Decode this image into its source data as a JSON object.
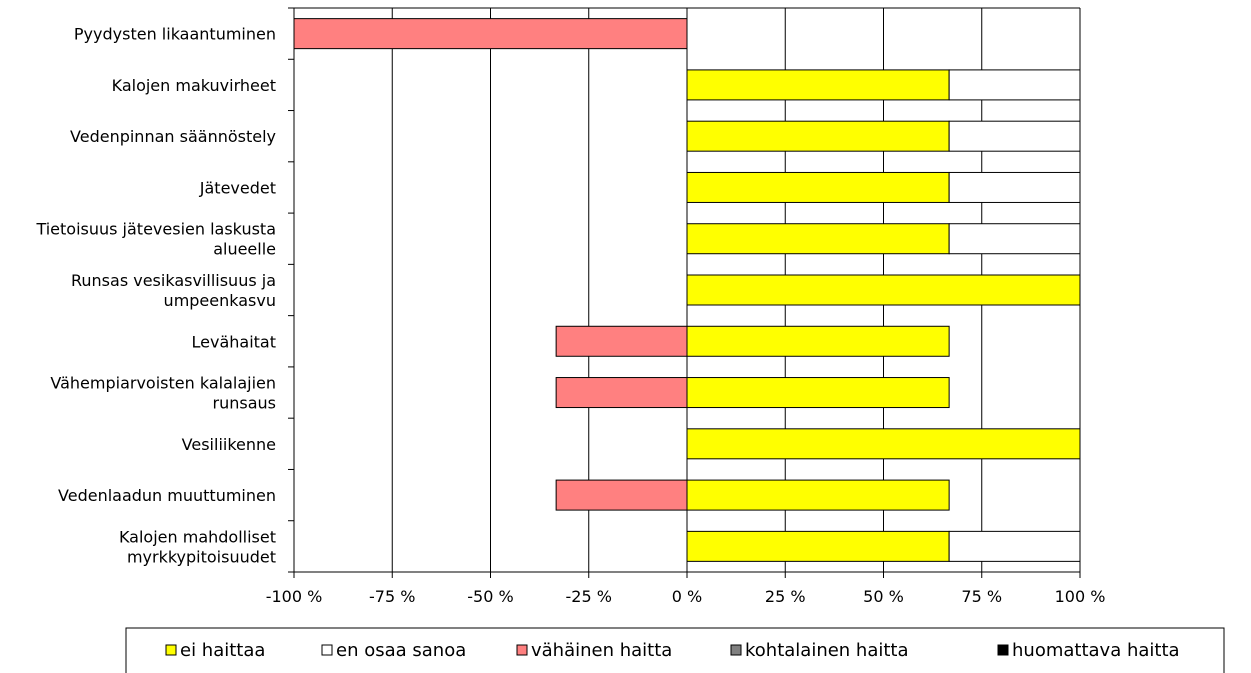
{
  "chart_data": {
    "type": "bar",
    "orientation": "horizontal",
    "stacked": true,
    "categories": [
      [
        "Pyydysten likaantuminen"
      ],
      [
        "Kalojen makuvirheet"
      ],
      [
        "Vedenpinnan säännöstely"
      ],
      [
        "Jätevedet"
      ],
      [
        "Tietoisuus jätevesien laskusta",
        "alueelle"
      ],
      [
        "Runsas vesikasvillisuus ja",
        "umpeenkasvu"
      ],
      [
        "Levähaitat"
      ],
      [
        "Vähempiarvoisten kalalajien",
        "runsaus"
      ],
      [
        "Vesiliikenne"
      ],
      [
        "Vedenlaadun muuttuminen"
      ],
      [
        "Kalojen mahdolliset",
        "myrkkypitoisuudet"
      ]
    ],
    "series": [
      {
        "name": "ei haittaa",
        "color": "#ffff00",
        "direction": "positive",
        "values": [
          0,
          66.7,
          66.7,
          66.7,
          66.7,
          100,
          66.7,
          66.7,
          100,
          66.7,
          66.7
        ]
      },
      {
        "name": "en osaa sanoa",
        "color": "#ffffff",
        "direction": "positive",
        "values": [
          0,
          33.3,
          33.3,
          33.3,
          33.3,
          0,
          0,
          0,
          0,
          0,
          33.3
        ]
      },
      {
        "name": "vähäinen haitta",
        "color": "#ff8080",
        "direction": "negative",
        "values": [
          100,
          0,
          0,
          0,
          0,
          0,
          33.3,
          33.3,
          0,
          33.3,
          0
        ]
      },
      {
        "name": "kohtalainen haitta",
        "color": "#808080",
        "direction": "negative",
        "values": [
          0,
          0,
          0,
          0,
          0,
          0,
          0,
          0,
          0,
          0,
          0
        ]
      },
      {
        "name": "huomattava haitta",
        "color": "#000000",
        "direction": "negative",
        "values": [
          0,
          0,
          0,
          0,
          0,
          0,
          0,
          0,
          0,
          0,
          0
        ]
      }
    ],
    "xlim": [
      -100,
      100
    ],
    "xticks": [
      -100,
      -75,
      -50,
      -25,
      0,
      25,
      50,
      75,
      100
    ],
    "xtick_labels": [
      "-100 %",
      "-75 %",
      "-50 %",
      "-25 %",
      "0 %",
      "25 %",
      "50 %",
      "75 %",
      "100 %"
    ],
    "grid": "vertical",
    "legend_position": "bottom"
  }
}
